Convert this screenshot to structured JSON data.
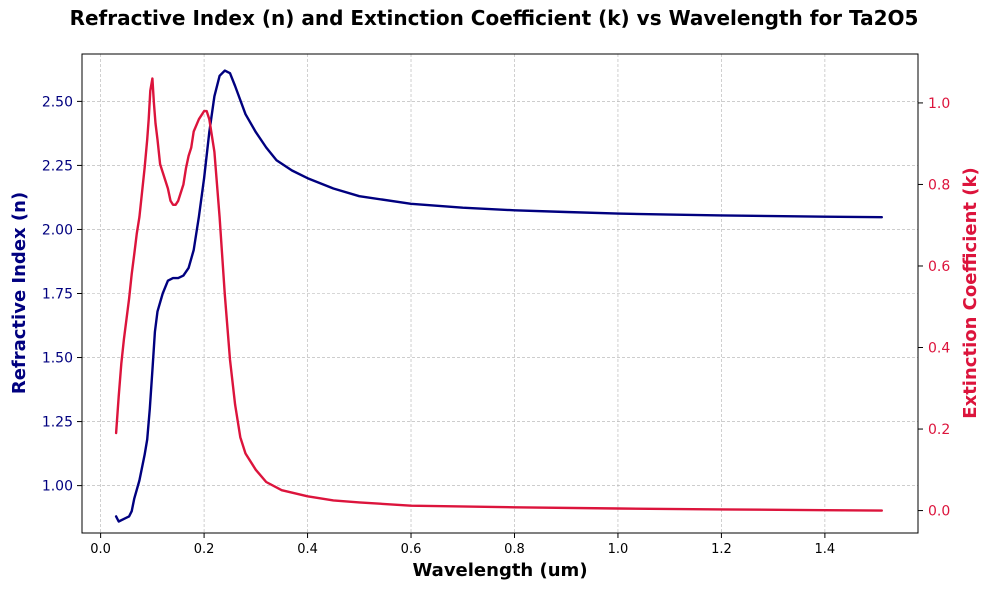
{
  "chart_data": {
    "type": "line",
    "title": "Refractive Index (n) and Extinction Coefficient (k) vs Wavelength for Ta2O5",
    "xlabel": "Wavelength (um)",
    "ylabel_left": "Refractive Index (n)",
    "ylabel_right": "Extinction Coefficient (k)",
    "xlim": [
      -0.036,
      1.58
    ],
    "ylim_left": [
      0.815,
      2.685
    ],
    "ylim_right": [
      -0.055,
      1.12
    ],
    "x_ticks": [
      "0.0",
      "0.2",
      "0.4",
      "0.6",
      "0.8",
      "1.0",
      "1.2",
      "1.4"
    ],
    "y_left_ticks": [
      "1.00",
      "1.25",
      "1.50",
      "1.75",
      "2.00",
      "2.25",
      "2.50"
    ],
    "y_right_ticks": [
      "0.0",
      "0.2",
      "0.4",
      "0.6",
      "0.8",
      "1.0"
    ],
    "grid": true,
    "colors": {
      "n": "#00007f",
      "k": "#dc143c"
    },
    "series": [
      {
        "axis": "left",
        "x": [
          0.03,
          0.035,
          0.045,
          0.055,
          0.06,
          0.065,
          0.075,
          0.085,
          0.09,
          0.095,
          0.1,
          0.105,
          0.11,
          0.12,
          0.13,
          0.14,
          0.15,
          0.16,
          0.17,
          0.18,
          0.19,
          0.2,
          0.21,
          0.22,
          0.23,
          0.24,
          0.25,
          0.26,
          0.28,
          0.3,
          0.32,
          0.34,
          0.37,
          0.4,
          0.45,
          0.5,
          0.6,
          0.7,
          0.8,
          0.9,
          1.0,
          1.1,
          1.2,
          1.3,
          1.4,
          1.51
        ],
        "y": [
          0.88,
          0.86,
          0.87,
          0.88,
          0.9,
          0.95,
          1.02,
          1.12,
          1.18,
          1.3,
          1.45,
          1.6,
          1.68,
          1.75,
          1.8,
          1.81,
          1.81,
          1.82,
          1.85,
          1.92,
          2.05,
          2.2,
          2.38,
          2.52,
          2.6,
          2.62,
          2.61,
          2.56,
          2.45,
          2.38,
          2.32,
          2.27,
          2.23,
          2.2,
          2.16,
          2.13,
          2.1,
          2.085,
          2.075,
          2.068,
          2.062,
          2.058,
          2.055,
          2.052,
          2.05,
          2.048
        ]
      },
      {
        "axis": "right",
        "x": [
          0.03,
          0.035,
          0.04,
          0.045,
          0.05,
          0.055,
          0.06,
          0.065,
          0.07,
          0.075,
          0.08,
          0.085,
          0.09,
          0.093,
          0.096,
          0.1,
          0.103,
          0.106,
          0.11,
          0.115,
          0.12,
          0.125,
          0.13,
          0.135,
          0.14,
          0.145,
          0.15,
          0.155,
          0.16,
          0.165,
          0.17,
          0.175,
          0.18,
          0.19,
          0.2,
          0.205,
          0.21,
          0.22,
          0.23,
          0.24,
          0.25,
          0.26,
          0.27,
          0.28,
          0.3,
          0.32,
          0.35,
          0.4,
          0.45,
          0.5,
          0.6,
          0.8,
          1.0,
          1.2,
          1.4,
          1.51
        ],
        "y": [
          0.19,
          0.28,
          0.36,
          0.42,
          0.47,
          0.52,
          0.58,
          0.63,
          0.68,
          0.72,
          0.78,
          0.84,
          0.91,
          0.96,
          1.03,
          1.06,
          1.0,
          0.95,
          0.91,
          0.85,
          0.83,
          0.81,
          0.79,
          0.76,
          0.75,
          0.75,
          0.76,
          0.78,
          0.8,
          0.84,
          0.87,
          0.89,
          0.93,
          0.96,
          0.98,
          0.98,
          0.96,
          0.88,
          0.72,
          0.53,
          0.37,
          0.26,
          0.18,
          0.14,
          0.1,
          0.07,
          0.05,
          0.035,
          0.025,
          0.02,
          0.012,
          0.008,
          0.005,
          0.003,
          0.001,
          0.0
        ]
      }
    ]
  }
}
